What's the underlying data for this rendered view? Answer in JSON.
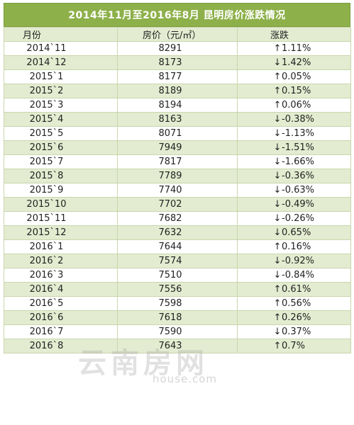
{
  "title": "2014年11月至2016年8月 昆明房价涨跌情况",
  "headers": {
    "month": "月份",
    "price": "房价（元/㎡）",
    "change": "涨跌"
  },
  "rows": [
    {
      "month": "2014`11",
      "price": "8291",
      "arrow": "↑",
      "change": "1.11%"
    },
    {
      "month": "2014`12",
      "price": "8173",
      "arrow": "↓",
      "change": "1.42%"
    },
    {
      "month": "2015`1",
      "price": "8177",
      "arrow": "↑",
      "change": "0.05%"
    },
    {
      "month": "2015`2",
      "price": "8189",
      "arrow": "↑",
      "change": "0.15%"
    },
    {
      "month": "2015`3",
      "price": "8194",
      "arrow": "↑",
      "change": "0.06%"
    },
    {
      "month": "2015`4",
      "price": "8163",
      "arrow": "↓",
      "change": "-0.38%"
    },
    {
      "month": "2015`5",
      "price": "8071",
      "arrow": "↓",
      "change": "-1.13%"
    },
    {
      "month": "2015`6",
      "price": "7949",
      "arrow": "↓",
      "change": "-1.51%"
    },
    {
      "month": "2015`7",
      "price": "7817",
      "arrow": "↓",
      "change": "-1.66%"
    },
    {
      "month": "2015`8",
      "price": "7789",
      "arrow": "↓",
      "change": "-0.36%"
    },
    {
      "month": "2015`9",
      "price": "7740",
      "arrow": "↓",
      "change": "-0.63%"
    },
    {
      "month": "2015`10",
      "price": "7702",
      "arrow": "↓",
      "change": "-0.49%"
    },
    {
      "month": "2015`11",
      "price": "7682",
      "arrow": "↓",
      "change": "-0.26%"
    },
    {
      "month": "2015`12",
      "price": "7632",
      "arrow": "↓",
      "change": "0.65%"
    },
    {
      "month": "2016`1",
      "price": "7644",
      "arrow": "↑",
      "change": "0.16%"
    },
    {
      "month": "2016`2",
      "price": "7574",
      "arrow": "↓",
      "change": "-0.92%"
    },
    {
      "month": "2016`3",
      "price": "7510",
      "arrow": "↓",
      "change": "-0.84%"
    },
    {
      "month": "2016`4",
      "price": "7556",
      "arrow": "↑",
      "change": "0.61%"
    },
    {
      "month": "2016`5",
      "price": "7598",
      "arrow": "↑",
      "change": "0.56%"
    },
    {
      "month": "2016`6",
      "price": "7618",
      "arrow": "↑",
      "change": "0.26%"
    },
    {
      "month": "2016`7",
      "price": "7590",
      "arrow": "↓",
      "change": "0.37%"
    },
    {
      "month": "2016`8",
      "price": "7643",
      "arrow": "↑",
      "change": "0.7%"
    }
  ],
  "watermark": {
    "logo_text": "云南房网",
    "url_text": "house.com"
  },
  "colors": {
    "title_bg": "#8db04a",
    "band": "#e3ecd0",
    "grid": "#c9d6ad"
  }
}
